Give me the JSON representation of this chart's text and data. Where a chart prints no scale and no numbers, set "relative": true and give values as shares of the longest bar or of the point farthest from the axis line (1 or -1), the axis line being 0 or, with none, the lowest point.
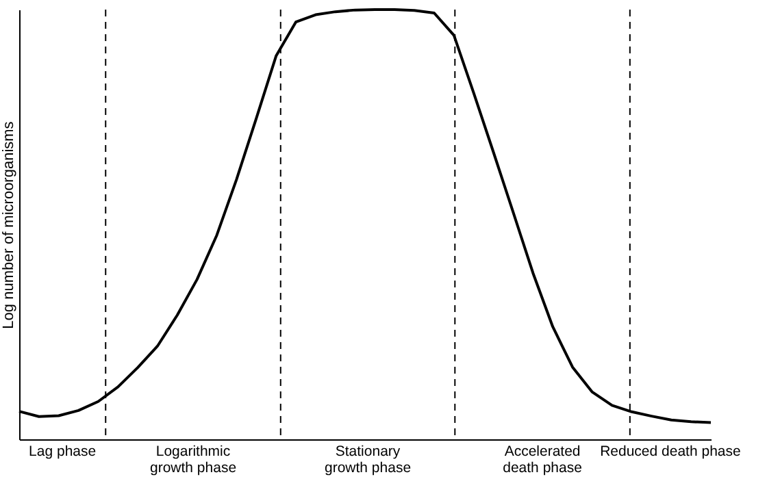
{
  "chart_data": {
    "type": "line",
    "ylabel": "Log number of microorganisms",
    "relative": true,
    "legend": false,
    "marker": "none",
    "line_style": "solid",
    "categories": [
      null,
      null,
      null,
      null,
      null,
      null,
      null,
      null,
      null,
      null,
      null,
      null,
      null,
      null,
      null,
      null,
      null,
      null,
      null,
      null,
      null,
      null,
      null,
      null,
      null,
      null,
      null,
      null,
      null,
      null,
      null,
      null,
      null,
      null,
      null,
      null
    ],
    "series": [
      {
        "color": "#000000",
        "values": [
          0.065,
          0.053,
          0.055,
          0.067,
          0.088,
          0.122,
          0.167,
          0.217,
          0.289,
          0.372,
          0.475,
          0.605,
          0.747,
          0.892,
          0.971,
          0.988,
          0.995,
          0.999,
          1,
          1,
          0.998,
          0.992,
          0.94,
          0.806,
          0.668,
          0.528,
          0.387,
          0.262,
          0.168,
          0.11,
          0.079,
          0.064,
          0.054,
          0.045,
          0.041,
          0.039
        ]
      }
    ],
    "annotations": [
      "Lag phase",
      "Logarithmic\ngrowth phase",
      "Stationary\ngrowth phase",
      "Accelerated\ndeath phase",
      "Reduced death phase"
    ]
  }
}
